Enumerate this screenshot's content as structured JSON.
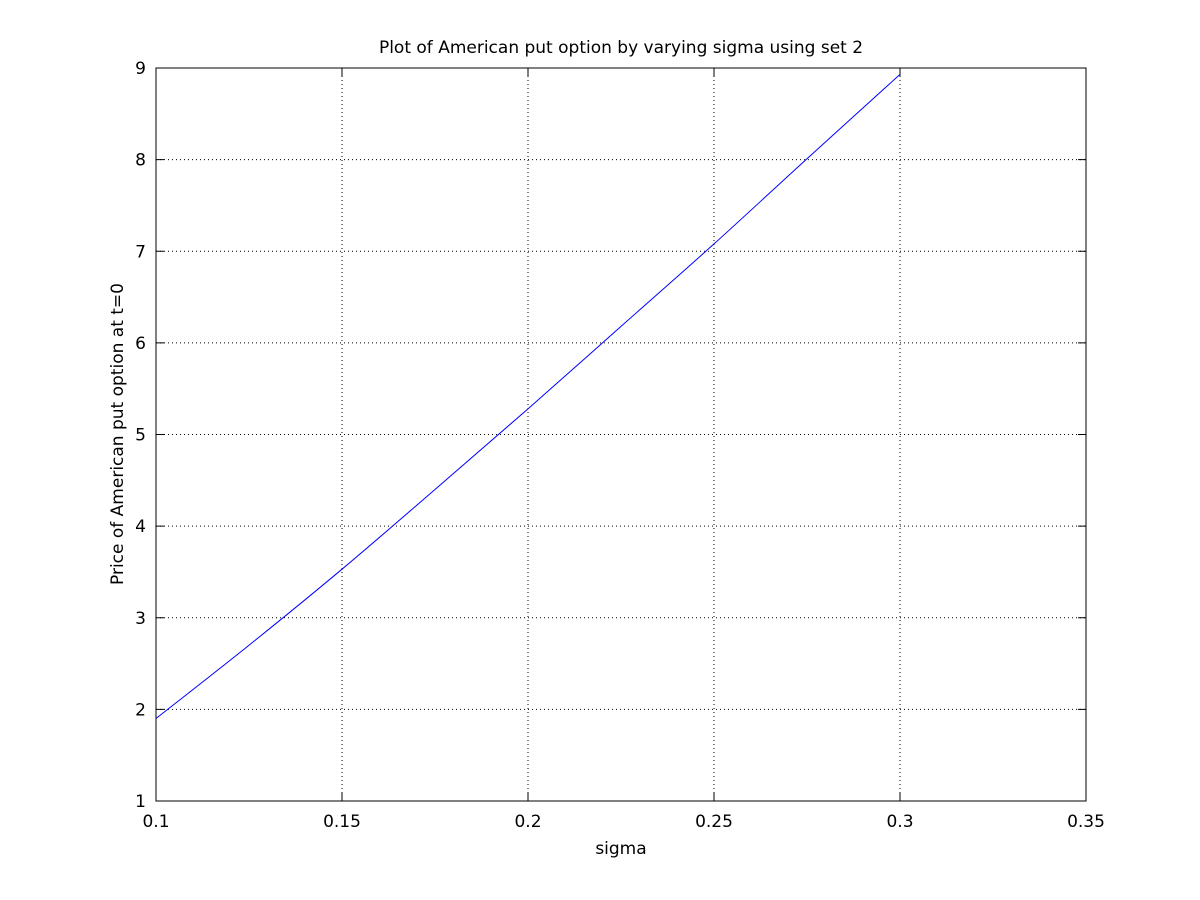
{
  "chart_data": {
    "type": "line",
    "title": "Plot of American put option by varying sigma using set 2",
    "xlabel": "sigma",
    "ylabel": "Price of American put option at t=0",
    "xlim": [
      0.1,
      0.35
    ],
    "ylim": [
      1,
      9
    ],
    "grid": true,
    "x_ticks": [
      0.1,
      0.15,
      0.2,
      0.25,
      0.3,
      0.35
    ],
    "x_tick_labels": [
      "0.1",
      "0.15",
      "0.2",
      "0.25",
      "0.3",
      "0.35"
    ],
    "y_ticks": [
      1,
      2,
      3,
      4,
      5,
      6,
      7,
      8,
      9
    ],
    "y_tick_labels": [
      "1",
      "2",
      "3",
      "4",
      "5",
      "6",
      "7",
      "8",
      "9"
    ],
    "series": [
      {
        "color": "#0000ff",
        "x": [
          0.1,
          0.125,
          0.15,
          0.175,
          0.2,
          0.225,
          0.25,
          0.275,
          0.3
        ],
        "y": [
          1.9,
          2.7,
          3.53,
          4.4,
          5.28,
          6.18,
          7.08,
          8.01,
          8.93
        ]
      }
    ]
  }
}
